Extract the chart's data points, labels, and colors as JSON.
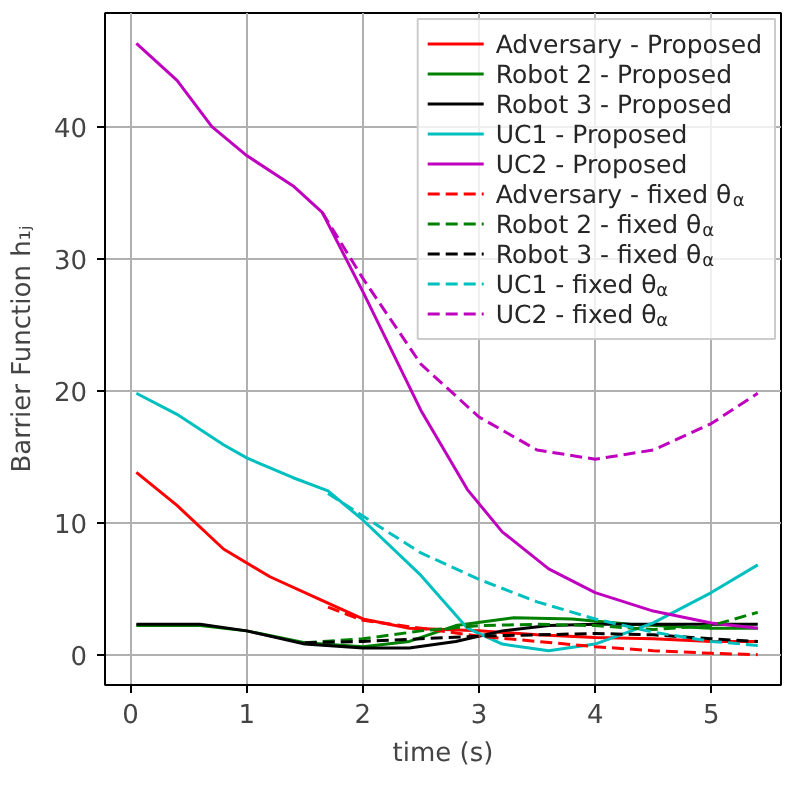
{
  "chart_data": {
    "type": "line",
    "xlabel": "time (s)",
    "ylabel": "Barrier Function h₁ⱼ",
    "xlim": [
      -0.22,
      5.6
    ],
    "ylim": [
      -2.3,
      48.6
    ],
    "xticks": [
      0,
      1,
      2,
      3,
      4,
      5
    ],
    "yticks": [
      0,
      10,
      20,
      30,
      40
    ],
    "grid": true,
    "legend": "top right",
    "series": [
      {
        "name": "Adversary - Proposed",
        "color": "#ff0000",
        "line_style": "solid",
        "x": [
          0.05,
          0.4,
          0.8,
          1.2,
          1.6,
          2.0,
          2.4,
          3.0,
          3.5,
          4.0,
          4.5,
          5.0,
          5.4
        ],
        "values": [
          13.8,
          11.3,
          8.0,
          5.9,
          4.3,
          2.7,
          2.0,
          1.8,
          1.5,
          1.3,
          1.2,
          1.0,
          1.0
        ]
      },
      {
        "name": "Robot 2 - Proposed",
        "color": "#008000",
        "line_style": "solid",
        "x": [
          0.05,
          0.6,
          1.0,
          1.5,
          2.0,
          2.4,
          2.8,
          3.3,
          3.8,
          4.3,
          5.0,
          5.4
        ],
        "values": [
          2.2,
          2.2,
          1.8,
          0.9,
          0.6,
          1.0,
          2.2,
          2.8,
          2.7,
          2.3,
          2.0,
          2.0
        ]
      },
      {
        "name": "Robot 3 - Proposed",
        "color": "#000000",
        "line_style": "solid",
        "x": [
          0.05,
          0.6,
          1.0,
          1.5,
          2.0,
          2.4,
          2.8,
          3.2,
          3.6,
          4.0,
          5.4
        ],
        "values": [
          2.3,
          2.3,
          1.8,
          0.8,
          0.5,
          0.5,
          1.0,
          1.8,
          2.2,
          2.3,
          2.3
        ]
      },
      {
        "name": "UC1 - Proposed",
        "color": "#00bfbf",
        "line_style": "solid",
        "x": [
          0.05,
          0.4,
          0.8,
          1.0,
          1.4,
          1.7,
          2.0,
          2.5,
          2.9,
          3.2,
          3.6,
          4.0,
          4.5,
          5.0,
          5.4
        ],
        "values": [
          19.8,
          18.2,
          15.9,
          14.9,
          13.4,
          12.4,
          10.2,
          6.0,
          2.0,
          0.8,
          0.3,
          0.8,
          2.4,
          4.7,
          6.8
        ]
      },
      {
        "name": "UC2 - Proposed",
        "color": "#bf00bf",
        "line_style": "solid",
        "x": [
          0.05,
          0.4,
          0.7,
          1.0,
          1.4,
          1.65,
          2.0,
          2.5,
          2.9,
          3.2,
          3.6,
          4.0,
          4.5,
          5.0,
          5.4
        ],
        "values": [
          46.3,
          43.5,
          40.0,
          37.8,
          35.5,
          33.5,
          27.5,
          18.5,
          12.5,
          9.3,
          6.5,
          4.7,
          3.3,
          2.4,
          2.0
        ]
      },
      {
        "name": "Adversary - fixed θ$_{α}$",
        "color": "#ff0000",
        "line_style": "dashed",
        "x": [
          1.7,
          2.0,
          2.5,
          3.0,
          3.5,
          4.0,
          4.5,
          5.0,
          5.4
        ],
        "values": [
          3.6,
          2.6,
          2.0,
          1.4,
          1.0,
          0.6,
          0.3,
          0.1,
          0.0
        ]
      },
      {
        "name": "Robot 2 - fixed θ$_{α}$",
        "color": "#008000",
        "line_style": "dashed",
        "x": [
          1.5,
          2.0,
          2.5,
          3.0,
          3.5,
          4.0,
          4.5,
          5.0,
          5.4
        ],
        "values": [
          0.9,
          1.2,
          1.8,
          2.2,
          2.3,
          2.2,
          1.9,
          2.2,
          3.2
        ]
      },
      {
        "name": "Robot 3 - fixed θ$_{α}$",
        "color": "#000000",
        "line_style": "dashed",
        "x": [
          1.5,
          2.0,
          2.5,
          3.0,
          4.0,
          4.5,
          5.0,
          5.4
        ],
        "values": [
          0.9,
          1.0,
          1.2,
          1.4,
          1.6,
          1.5,
          1.2,
          1.0
        ]
      },
      {
        "name": "UC1 - fixed θ$_{α}$",
        "color": "#00bfbf",
        "line_style": "dashed",
        "x": [
          1.7,
          2.0,
          2.5,
          3.0,
          3.5,
          4.0,
          4.5,
          5.0,
          5.4
        ],
        "values": [
          12.2,
          10.5,
          7.7,
          5.7,
          4.0,
          2.7,
          1.7,
          1.0,
          0.7
        ]
      },
      {
        "name": "UC2 - fixed θ$_{α}$",
        "color": "#bf00bf",
        "line_style": "dashed",
        "x": [
          1.65,
          2.0,
          2.5,
          3.0,
          3.5,
          4.0,
          4.5,
          5.0,
          5.4
        ],
        "values": [
          33.5,
          28.5,
          22.0,
          18.0,
          15.5,
          14.8,
          15.5,
          17.5,
          19.8
        ]
      }
    ]
  }
}
